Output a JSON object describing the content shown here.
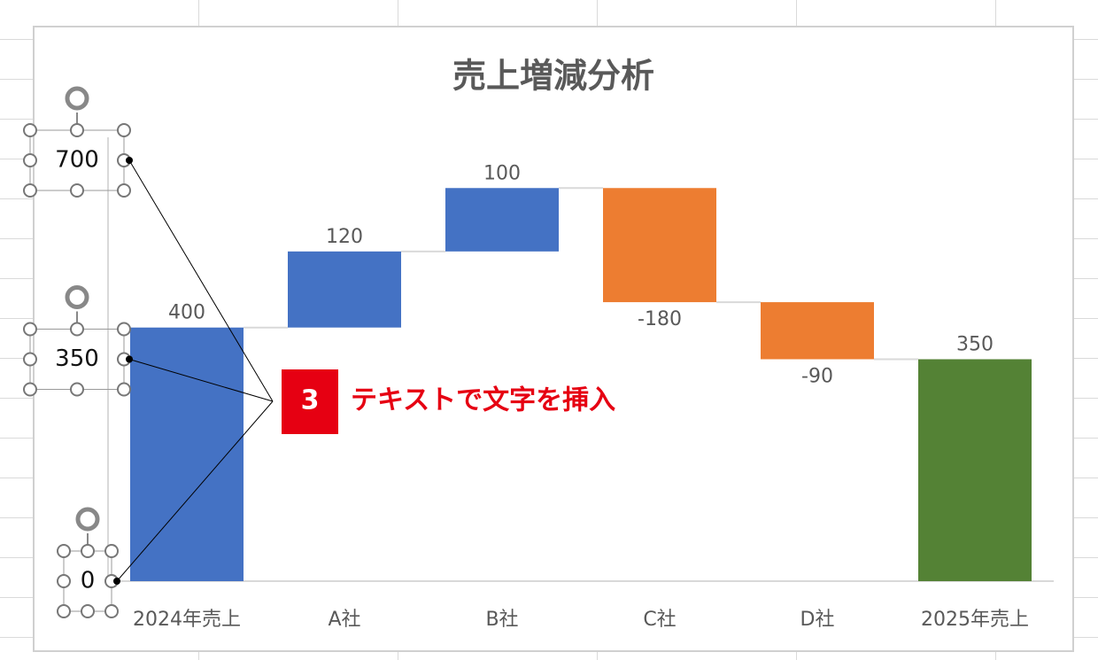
{
  "chart_data": {
    "type": "waterfall",
    "title": "売上増減分析",
    "categories": [
      "2024年売上",
      "A社",
      "B社",
      "C社",
      "D社",
      "2025年売上"
    ],
    "values": [
      400,
      120,
      100,
      -180,
      -90,
      350
    ],
    "is_total": [
      true,
      false,
      false,
      false,
      false,
      true
    ],
    "colors": [
      "#4472c4",
      "#4472c4",
      "#4472c4",
      "#ed7d31",
      "#ed7d31",
      "#548235"
    ],
    "ylim": [
      0,
      700
    ],
    "yticks": [
      0,
      350,
      700
    ],
    "annotation": {
      "step": "3",
      "text": "テキストで文字を挿入"
    }
  }
}
